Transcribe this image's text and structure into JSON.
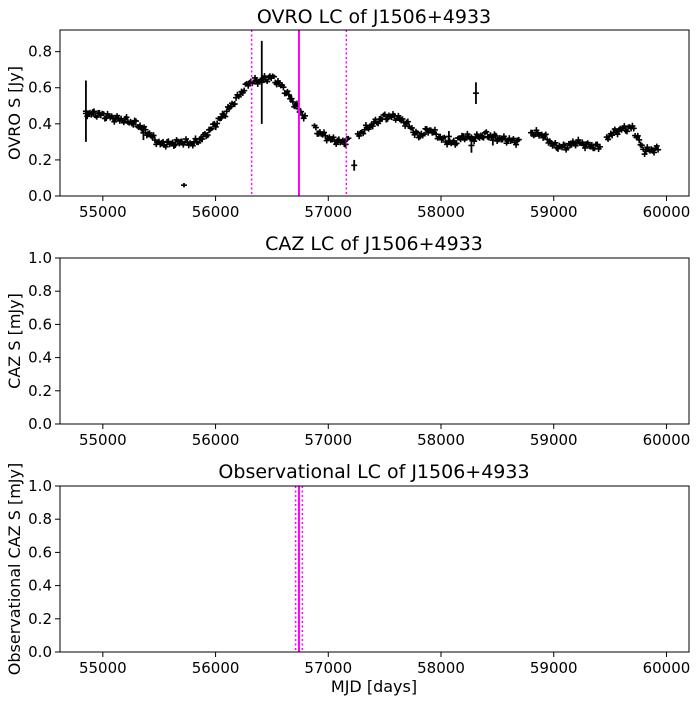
{
  "chart_data": [
    {
      "type": "scatter",
      "title": "OVRO LC of J1506+4933",
      "xlabel": "",
      "ylabel": "OVRO S [Jy]",
      "xlim": [
        54620,
        60200
      ],
      "ylim": [
        0.0,
        0.92
      ],
      "xticks": [
        "55000",
        "56000",
        "57000",
        "58000",
        "59000",
        "60000"
      ],
      "yticks": [
        "0.0",
        "0.2",
        "0.4",
        "0.6",
        "0.8"
      ],
      "marker_color": "#000000",
      "line_color": "#ff00ff",
      "vlines": [
        {
          "x": 56320,
          "style": "dotted"
        },
        {
          "x": 56740,
          "style": "solid"
        },
        {
          "x": 57160,
          "style": "dotted"
        }
      ],
      "curve": [
        [
          54850,
          0.46
        ],
        [
          55000,
          0.45
        ],
        [
          55100,
          0.43
        ],
        [
          55200,
          0.42
        ],
        [
          55300,
          0.4
        ],
        [
          55400,
          0.35
        ],
        [
          55500,
          0.29
        ],
        [
          55600,
          0.29
        ],
        [
          55700,
          0.3
        ],
        [
          55800,
          0.29
        ],
        [
          55900,
          0.33
        ],
        [
          56000,
          0.4
        ],
        [
          56100,
          0.47
        ],
        [
          56200,
          0.55
        ],
        [
          56300,
          0.63
        ],
        [
          56400,
          0.64
        ],
        [
          56500,
          0.66
        ],
        [
          56600,
          0.6
        ],
        [
          56700,
          0.51
        ],
        [
          56800,
          0.43
        ],
        [
          56900,
          0.36
        ],
        [
          57000,
          0.32
        ],
        [
          57100,
          0.3
        ],
        [
          57150,
          0.3
        ],
        [
          57250,
          0.33
        ],
        [
          57350,
          0.38
        ],
        [
          57500,
          0.44
        ],
        [
          57600,
          0.44
        ],
        [
          57700,
          0.4
        ],
        [
          57800,
          0.33
        ],
        [
          57900,
          0.37
        ],
        [
          58000,
          0.32
        ],
        [
          58100,
          0.29
        ],
        [
          58200,
          0.33
        ],
        [
          58300,
          0.32
        ],
        [
          58400,
          0.34
        ],
        [
          58500,
          0.32
        ],
        [
          58600,
          0.31
        ],
        [
          58700,
          0.3
        ],
        [
          58800,
          0.35
        ],
        [
          58900,
          0.34
        ],
        [
          59000,
          0.28
        ],
        [
          59100,
          0.27
        ],
        [
          59200,
          0.3
        ],
        [
          59300,
          0.28
        ],
        [
          59400,
          0.27
        ],
        [
          59500,
          0.34
        ],
        [
          59600,
          0.37
        ],
        [
          59700,
          0.38
        ],
        [
          59800,
          0.25
        ],
        [
          59930,
          0.26
        ]
      ],
      "outliers": [
        {
          "x": 54850,
          "y": 0.47,
          "err": 0.17
        },
        {
          "x": 55720,
          "y": 0.06,
          "err": 0.0
        },
        {
          "x": 56410,
          "y": 0.63,
          "err": 0.23
        },
        {
          "x": 57230,
          "y": 0.17,
          "err": 0.03
        },
        {
          "x": 58310,
          "y": 0.57,
          "err": 0.06
        },
        {
          "x": 58070,
          "y": 0.33,
          "err": 0.03
        },
        {
          "x": 58270,
          "y": 0.28,
          "err": 0.04
        },
        {
          "x": 58460,
          "y": 0.31,
          "err": 0.03
        },
        {
          "x": 55360,
          "y": 0.35,
          "err": 0.04
        }
      ]
    },
    {
      "type": "scatter",
      "title": "CAZ LC of J1506+4933",
      "xlabel": "",
      "ylabel": "CAZ S [mJy]",
      "xlim": [
        54620,
        60200
      ],
      "ylim": [
        0.0,
        1.0
      ],
      "xticks": [
        "55000",
        "56000",
        "57000",
        "58000",
        "59000",
        "60000"
      ],
      "yticks": [
        "0.0",
        "0.2",
        "0.4",
        "0.6",
        "0.8",
        "1.0"
      ],
      "vlines": []
    },
    {
      "type": "scatter",
      "title": "Observational LC of J1506+4933",
      "xlabel": "MJD [days]",
      "ylabel": "Observational CAZ S [mJy]",
      "xlim": [
        54620,
        60200
      ],
      "ylim": [
        0.0,
        1.0
      ],
      "xticks": [
        "55000",
        "56000",
        "57000",
        "58000",
        "59000",
        "60000"
      ],
      "yticks": [
        "0.0",
        "0.2",
        "0.4",
        "0.6",
        "0.8",
        "1.0"
      ],
      "line_color": "#ff00ff",
      "vlines": [
        {
          "x": 56710,
          "style": "dotted"
        },
        {
          "x": 56740,
          "style": "solid"
        },
        {
          "x": 56770,
          "style": "dotted"
        }
      ]
    }
  ]
}
